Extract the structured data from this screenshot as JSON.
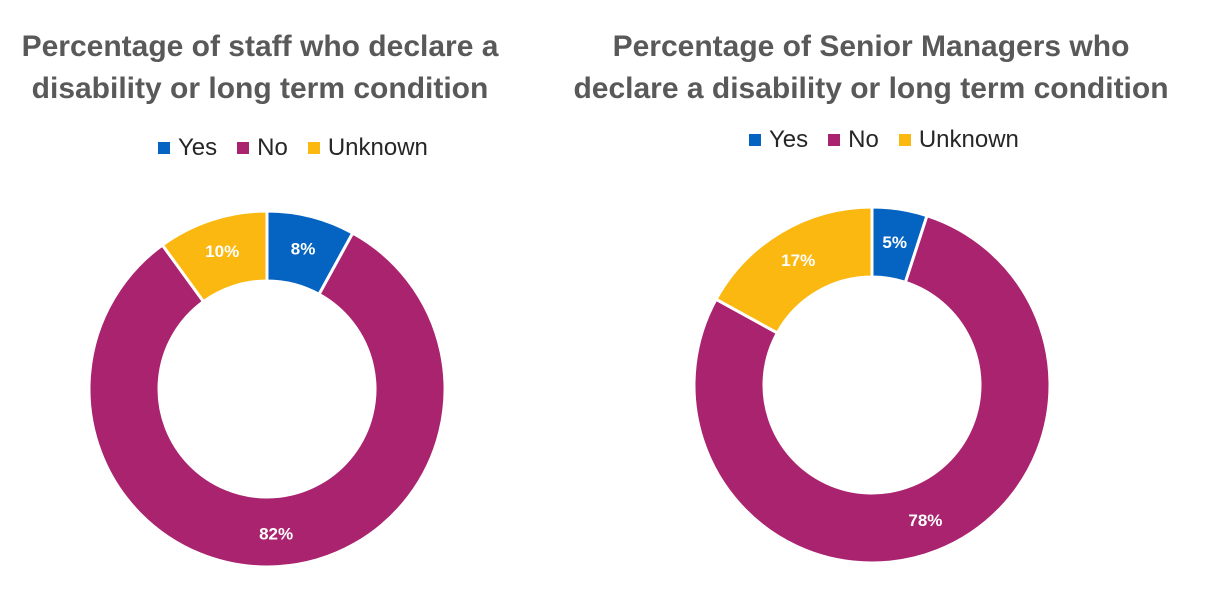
{
  "chart_data": [
    {
      "type": "pie",
      "subtype": "donut",
      "title": "Percentage of staff who declare a disability or long term condition",
      "categories": [
        "Yes",
        "No",
        "Unknown"
      ],
      "values": [
        8,
        82,
        10
      ],
      "labels": [
        "8%",
        "82%",
        "10%"
      ],
      "colors": [
        "#0563C1",
        "#A9236F",
        "#FBB810"
      ],
      "legend_position": "top"
    },
    {
      "type": "pie",
      "subtype": "donut",
      "title": "Percentage of Senior Managers who declare a disability or long term condition",
      "categories": [
        "Yes",
        "No",
        "Unknown"
      ],
      "values": [
        5,
        78,
        17
      ],
      "labels": [
        "5%",
        "78%",
        "17%"
      ],
      "colors": [
        "#0563C1",
        "#A9236F",
        "#FBB810"
      ],
      "legend_position": "top"
    }
  ]
}
